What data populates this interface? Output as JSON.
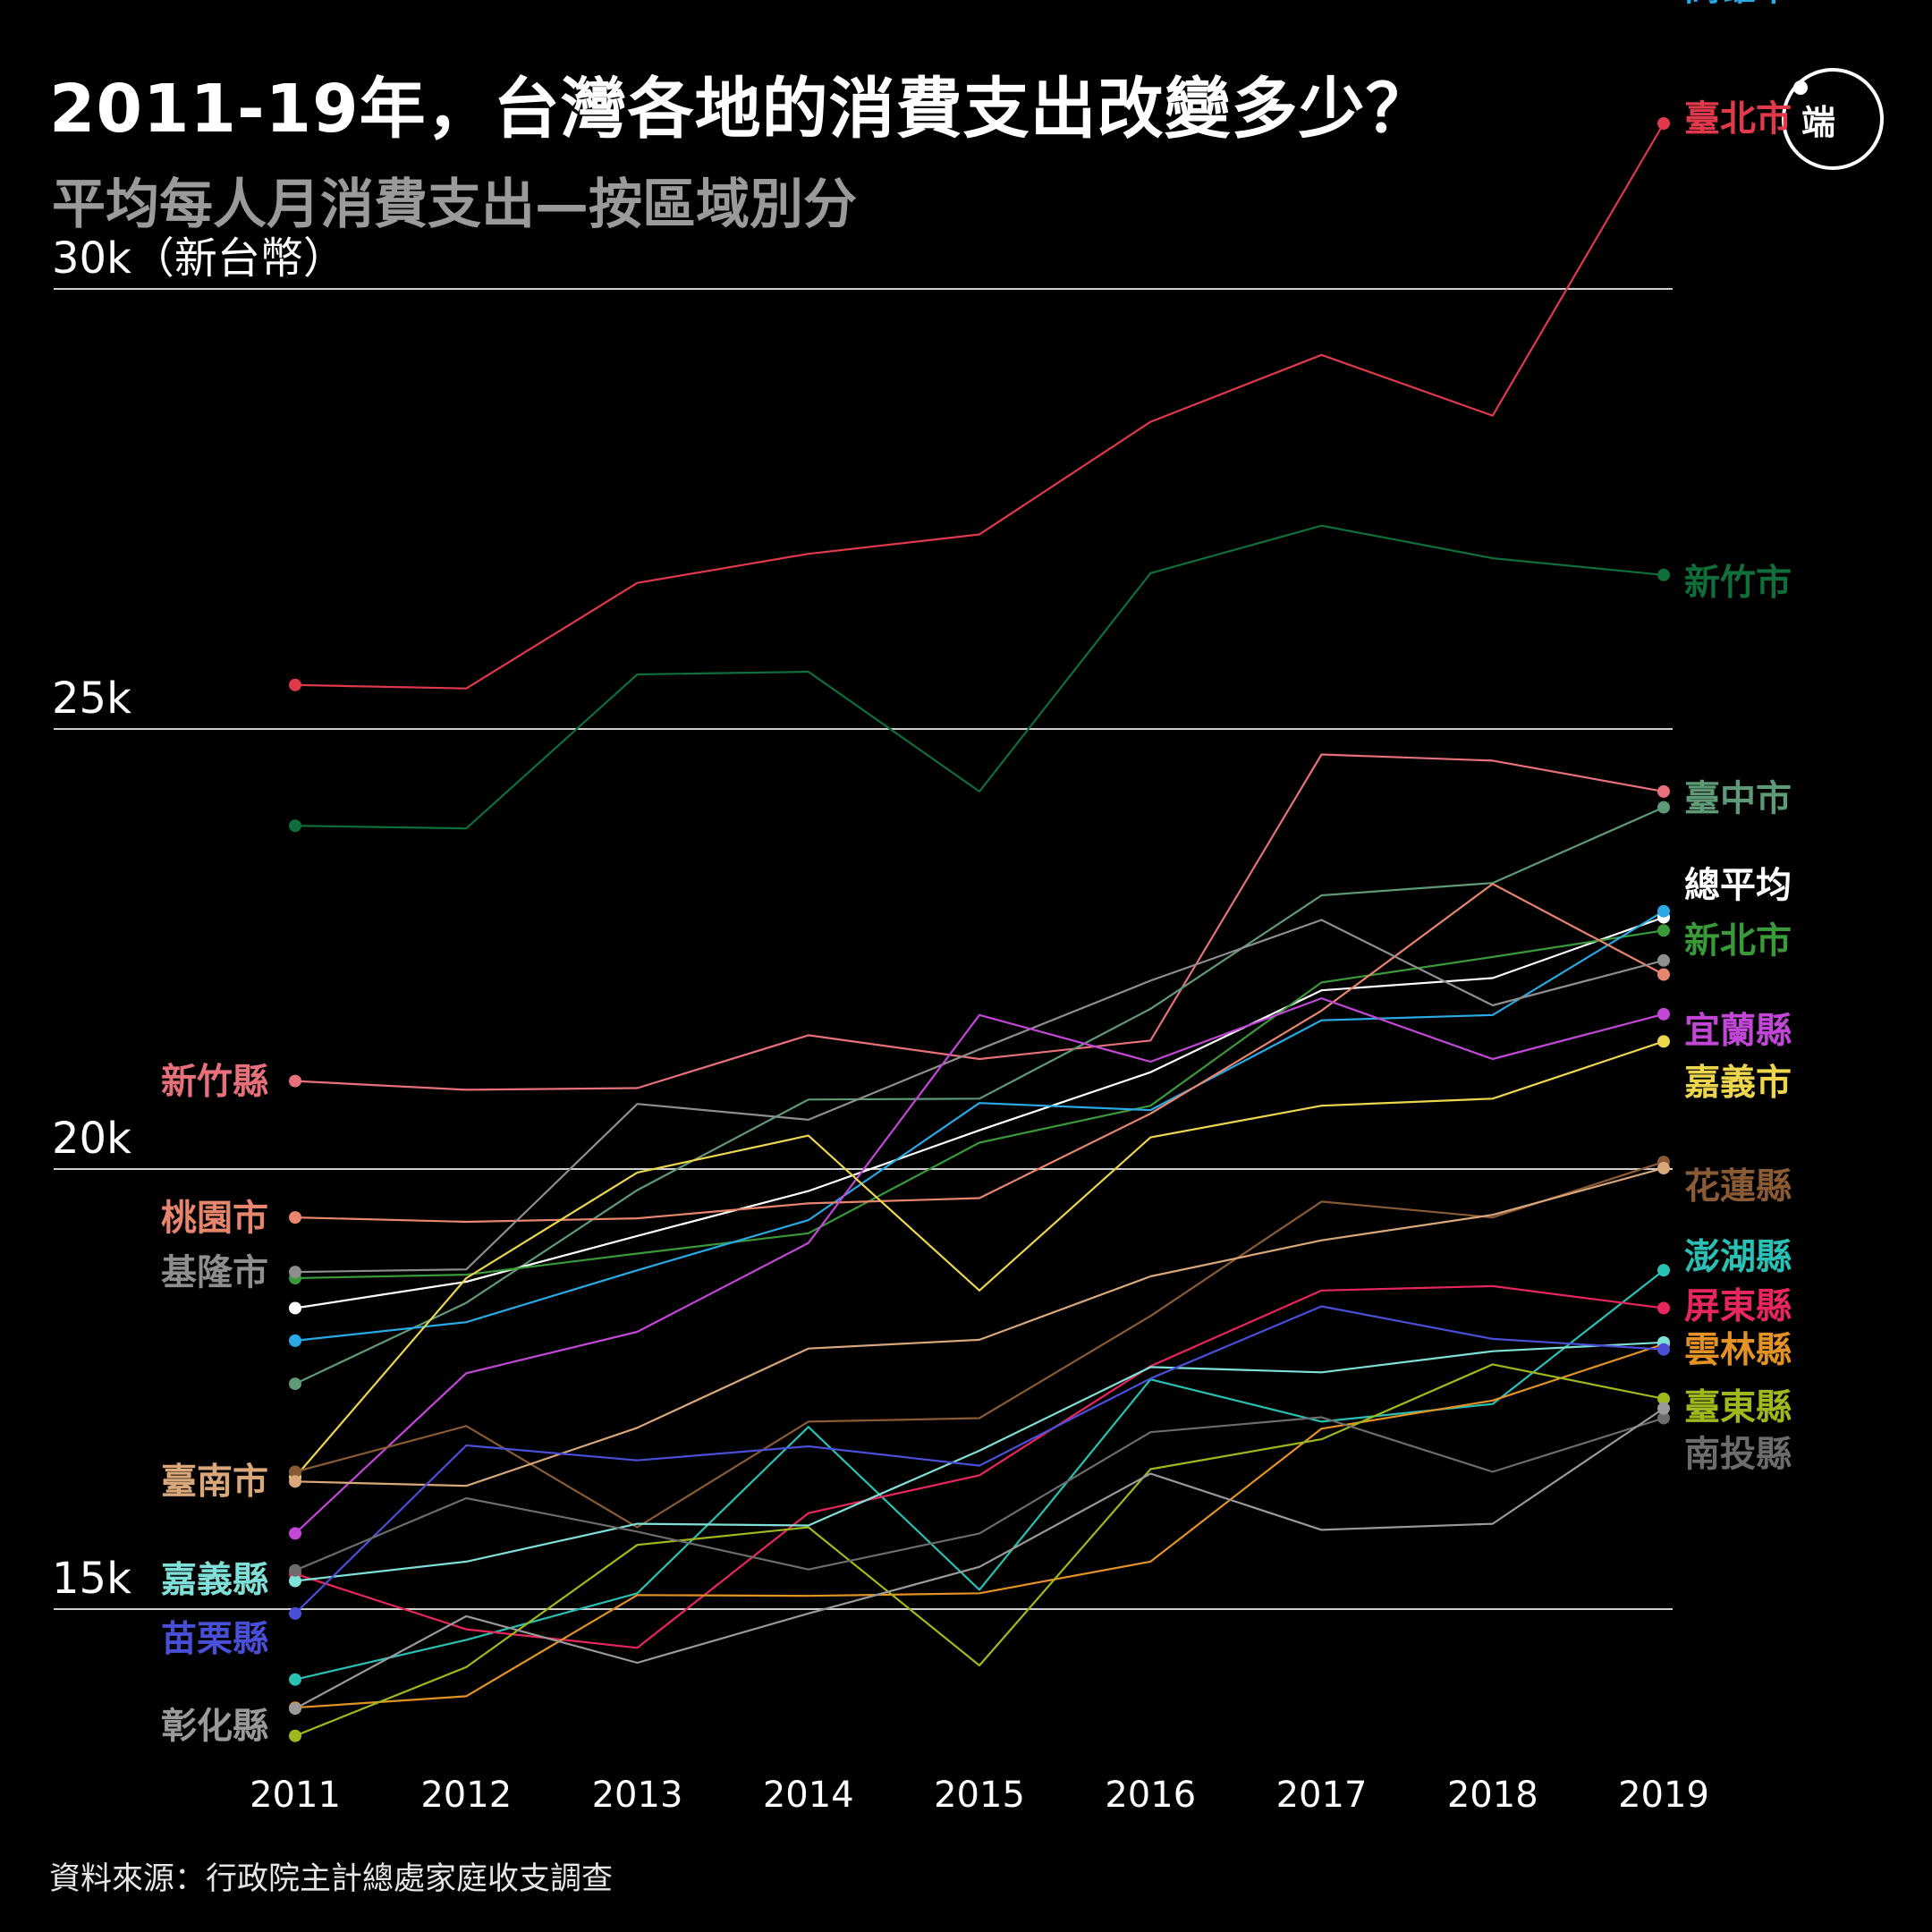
{
  "header": {
    "title": "2011-19年，台灣各地的消費支出改變多少？",
    "subtitle": "平均每人月消費支出—按區域別分",
    "logo_text": "端"
  },
  "footer": {
    "source": "資料來源：行政院主計總處家庭收支調查"
  },
  "chart_data": {
    "type": "line",
    "x": [
      2011,
      2012,
      2013,
      2014,
      2015,
      2016,
      2017,
      2018,
      2019
    ],
    "ylim": [
      12400,
      32500
    ],
    "grid": true,
    "y_ticks": [
      {
        "value": 30000,
        "label": "30k（新台幣）"
      },
      {
        "value": 25000,
        "label": "25k"
      },
      {
        "value": 20000,
        "label": "20k"
      },
      {
        "value": 15000,
        "label": "15k"
      }
    ],
    "series": [
      {
        "name": "臺北市",
        "color": "#e0394c",
        "label_side": "right",
        "values": [
          25500,
          25460,
          26660,
          26990,
          27210,
          28490,
          29250,
          28560,
          31880
        ]
      },
      {
        "name": "新竹市",
        "color": "#0f6e3a",
        "label_side": "right",
        "values": [
          23900,
          23870,
          25620,
          25650,
          24290,
          26770,
          27310,
          26940,
          26750
        ]
      },
      {
        "name": "新竹縣",
        "color": "#e8707a",
        "label_side": "left",
        "values": [
          21000,
          20900,
          20920,
          21520,
          21250,
          21460,
          24710,
          24640,
          24290
        ]
      },
      {
        "name": "臺中市",
        "color": "#5e9a77",
        "label_side": "right",
        "values": [
          17560,
          18480,
          19760,
          20790,
          20800,
          21820,
          23110,
          23250,
          24110
        ]
      },
      {
        "name": "總平均",
        "color": "#ffffff",
        "label_side": "right",
        "values": [
          18420,
          18720,
          19240,
          19750,
          20440,
          21100,
          22030,
          22170,
          22860
        ]
      },
      {
        "name": "新北市",
        "color": "#3a9a3a",
        "label_side": "right",
        "values": [
          18760,
          18800,
          19040,
          19270,
          20300,
          20720,
          22120,
          22410,
          22710
        ]
      },
      {
        "name": "高雄市",
        "color": "#29a9e6",
        "label_side": "right",
        "values": [
          18050,
          18260,
          18850,
          19420,
          20750,
          20670,
          21690,
          21750,
          22930
        ]
      },
      {
        "name": "桃園市",
        "color": "#e8856d",
        "label_side": "left",
        "values": [
          19450,
          19400,
          19440,
          19610,
          19670,
          20630,
          21800,
          23240,
          22210
        ]
      },
      {
        "name": "基隆市",
        "color": "#8e8e8e",
        "label_side": "left",
        "values": [
          18830,
          18860,
          20740,
          20560,
          21360,
          22140,
          22830,
          21860,
          22370
        ]
      },
      {
        "name": "宜蘭縣",
        "color": "#c247d6",
        "label_side": "right",
        "values": [
          15860,
          17680,
          18150,
          19160,
          21750,
          21220,
          21940,
          21250,
          21760
        ]
      },
      {
        "name": "嘉義市",
        "color": "#ecd64e",
        "label_side": "right",
        "values": [
          16500,
          18760,
          19960,
          20380,
          18620,
          20360,
          20720,
          20800,
          21450
        ]
      },
      {
        "name": "花蓮縣",
        "color": "#8a5a35",
        "label_side": "right",
        "values": [
          16560,
          17080,
          15930,
          17130,
          17170,
          18330,
          19630,
          19450,
          20080
        ]
      },
      {
        "name": "臺南市",
        "color": "#d9a77a",
        "label_side": "left",
        "values": [
          16450,
          16400,
          17060,
          17960,
          18060,
          18780,
          19190,
          19480,
          20010
        ]
      },
      {
        "name": "澎湖縣",
        "color": "#2ac0b4",
        "label_side": "right",
        "values": [
          14200,
          14650,
          15180,
          17070,
          15220,
          17610,
          17130,
          17330,
          18850
        ]
      },
      {
        "name": "屏東縣",
        "color": "#e8265e",
        "label_side": "right",
        "values": [
          15400,
          14770,
          14560,
          16090,
          16520,
          17760,
          18620,
          18670,
          18420
        ]
      },
      {
        "name": "雲林縣",
        "color": "#e39226",
        "label_side": "right",
        "values": [
          13880,
          14010,
          15160,
          15150,
          15180,
          15540,
          17050,
          17370,
          18010
        ]
      },
      {
        "name": "嘉義縣",
        "color": "#7fe0d8",
        "label_side": "left",
        "values": [
          15320,
          15540,
          15970,
          15950,
          16800,
          17750,
          17690,
          17930,
          18030
        ]
      },
      {
        "name": "苗栗縣",
        "color": "#4a4fd8",
        "label_side": "left",
        "values": [
          14950,
          16860,
          16690,
          16850,
          16630,
          17620,
          18440,
          18070,
          17950
        ]
      },
      {
        "name": "臺東縣",
        "color": "#9eb81d",
        "label_side": "right",
        "values": [
          13560,
          14340,
          15730,
          15930,
          14360,
          16590,
          16930,
          17780,
          17390
        ]
      },
      {
        "name": "南投縣",
        "color": "#6c6c6c",
        "label_side": "right",
        "values": [
          15440,
          16260,
          15880,
          15450,
          15860,
          17010,
          17180,
          16560,
          17170
        ]
      },
      {
        "name": "彰化縣",
        "color": "#9a9a9a",
        "label_side": "left",
        "values": [
          13870,
          14920,
          14390,
          14950,
          15480,
          16540,
          15900,
          15970,
          17280
        ]
      }
    ],
    "left_label_positions": {
      "新竹縣": 21000,
      "桃園市": 19450,
      "基隆市": 18830,
      "高雄市": 17850,
      "臺南市": 16460,
      "嘉義縣": 15340,
      "苗栗縣": 14670,
      "彰化縣": 13680
    },
    "right_label_positions": {
      "臺北市": 31940,
      "新竹市": 26670,
      "臺中市": 24220,
      "總平均": 23230,
      "新北市": 22600,
      "宜蘭縣": 21580,
      "嘉義市": 20990,
      "花蓮縣": 19810,
      "澎湖縣": 19010,
      "屏東縣": 18450,
      "雲林縣": 17950,
      "臺東縣": 17300,
      "南投縣": 16770
    }
  }
}
